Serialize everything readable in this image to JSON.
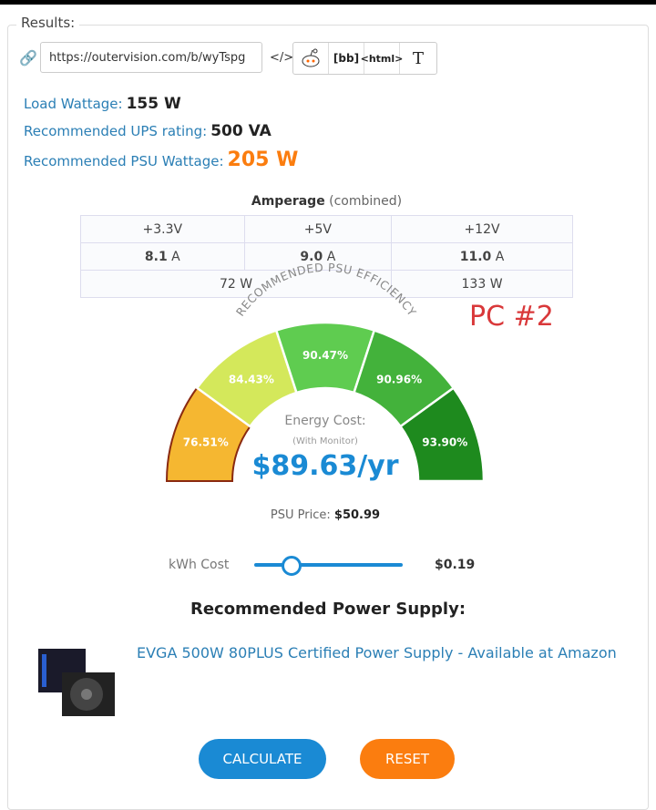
{
  "results_label": "Results:",
  "share": {
    "url": "https://outervision.com/b/wyTspg",
    "embed_label": "</>",
    "bb_label": "[bb]",
    "html_label": "<html>",
    "text_label": "T"
  },
  "stats": {
    "load_label": "Load Wattage:",
    "load_value": "155 W",
    "ups_label": "Recommended UPS rating:",
    "ups_value": "500 VA",
    "psu_label": "Recommended PSU Wattage:",
    "psu_value": "205 W"
  },
  "amperage": {
    "title": "Amperage",
    "subtitle": "(combined)",
    "headers": [
      "+3.3V",
      "+5V",
      "+12V"
    ],
    "amps": [
      "8.1",
      "9.0",
      "11.0"
    ],
    "unit": "A",
    "watts": [
      "72 W",
      "133 W"
    ]
  },
  "annotation": "PC  #2",
  "gauge": {
    "title": "RECOMMENDED PSU EFFICIENCY",
    "segments": [
      {
        "label": "76.51%",
        "color": "#f5b731",
        "selected": true
      },
      {
        "label": "84.43%",
        "color": "#d4e85b"
      },
      {
        "label": "90.47%",
        "color": "#5fcc50"
      },
      {
        "label": "90.96%",
        "color": "#43b23b"
      },
      {
        "label": "93.90%",
        "color": "#1e8a1e"
      }
    ],
    "energy_label": "Energy Cost:",
    "monitor_label": "(With Monitor)",
    "cost": "$89.63/yr"
  },
  "psu_price_label": "PSU Price:",
  "psu_price": "$50.99",
  "kwh": {
    "label": "kWh Cost",
    "value": "$0.19",
    "slider_fraction": 0.25
  },
  "recommended_title": "Recommended Power Supply:",
  "product_link": "EVGA 500W 80PLUS Certified Power Supply - Available at Amazon",
  "calculate_label": "CALCULATE",
  "reset_label": "RESET",
  "colors": {
    "accent": "#1a8ad4",
    "orange": "#fb7d0f"
  }
}
